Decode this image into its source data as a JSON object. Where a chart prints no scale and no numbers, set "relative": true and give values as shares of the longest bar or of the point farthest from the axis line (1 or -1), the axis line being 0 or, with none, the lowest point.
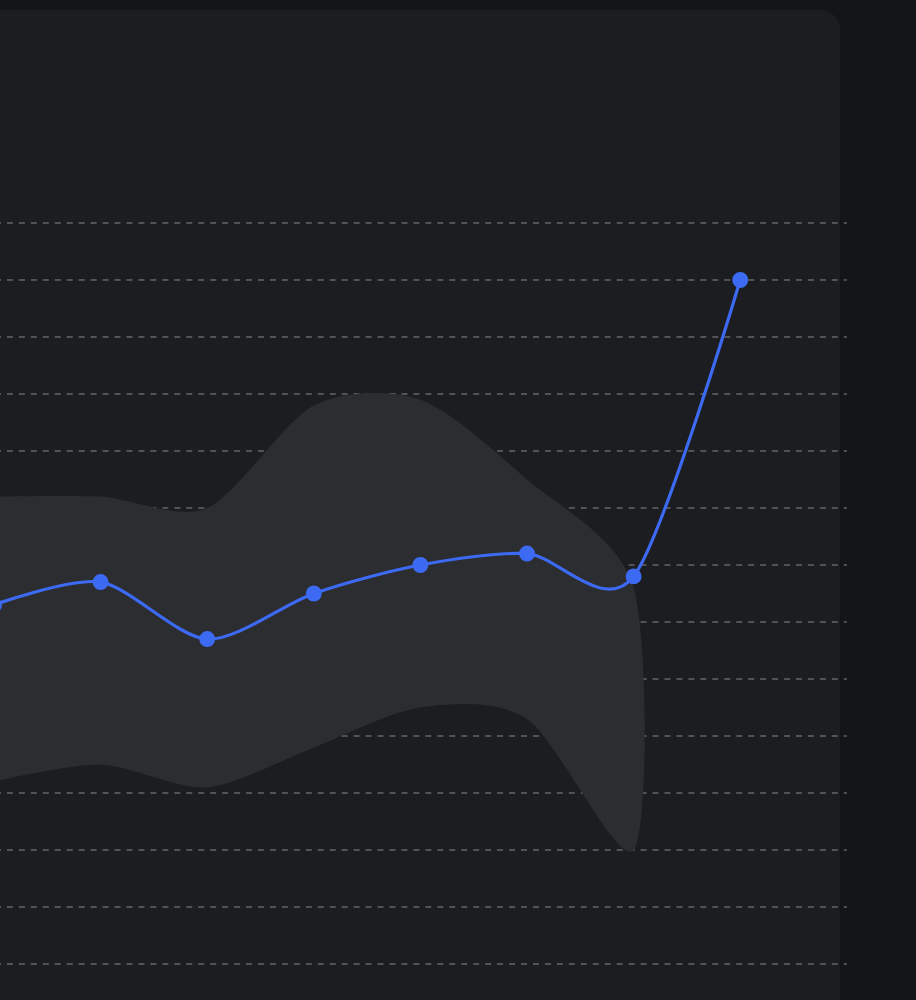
{
  "chart_data": {
    "type": "line",
    "relative": true,
    "grid": "y",
    "marker": "circle",
    "line_style": "solid",
    "categories": [
      null,
      null,
      null,
      null,
      null,
      null,
      null,
      null
    ],
    "series": [
      {
        "color": "#3d6af2",
        "values": [
          0.43,
          0.47,
          0.37,
          0.45,
          0.5,
          0.52,
          0.48,
          1.0
        ],
        "lower": [
          0.12,
          0.15,
          0.11,
          0.18,
          0.25,
          0.23,
          0.0,
          null
        ],
        "upper": [
          0.62,
          0.62,
          0.6,
          0.78,
          0.79,
          0.65,
          0.46,
          null
        ]
      }
    ]
  }
}
